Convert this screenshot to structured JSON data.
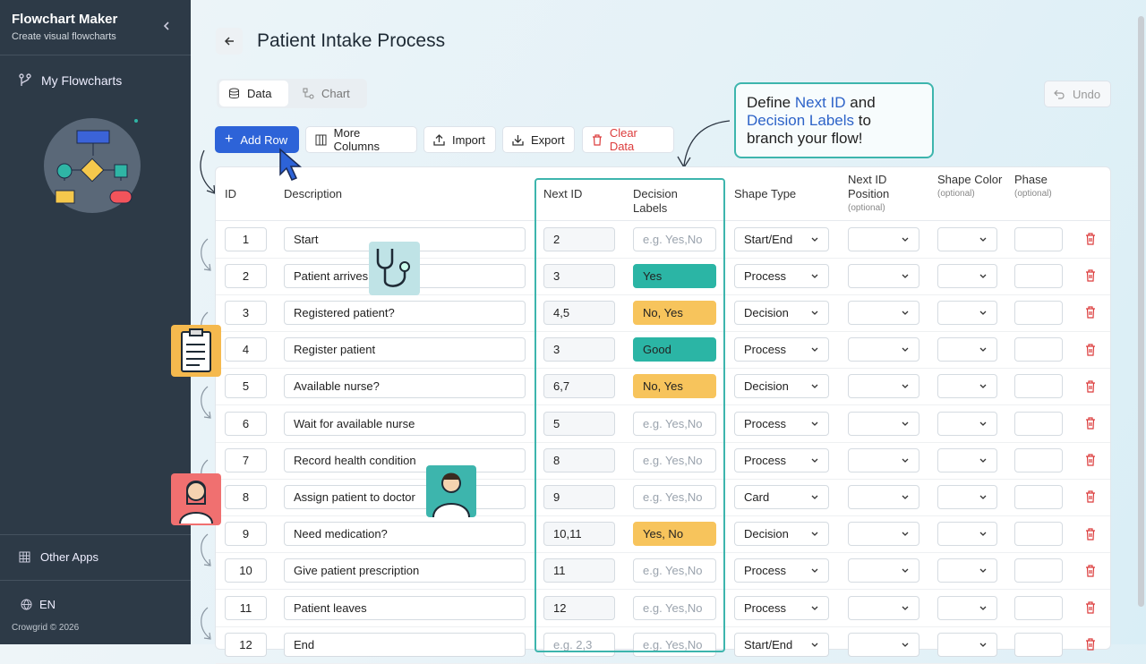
{
  "sidebar": {
    "app_title": "Flowchart Maker",
    "app_subtitle": "Create visual flowcharts",
    "nav_item": "My Flowcharts",
    "other_apps": "Other Apps",
    "language": "EN",
    "footer": "Crowgrid © 2026"
  },
  "header": {
    "title": "Patient Intake Process"
  },
  "tabs": [
    "Data",
    "Chart"
  ],
  "toolbar": [
    "Add Row",
    "More Columns",
    "Import",
    "Export",
    "Clear Data"
  ],
  "undo": "Undo",
  "callout": {
    "parts": [
      "Define",
      "Next ID",
      "and",
      "Decision Labels",
      "to branch your flow!"
    ]
  },
  "table": {
    "columns": [
      {
        "label": "ID"
      },
      {
        "label": "Description"
      },
      {
        "label": "Next ID"
      },
      {
        "label": "Decision Labels"
      },
      {
        "label": "Shape Type"
      },
      {
        "label": "Next ID Position",
        "note": "(optional)"
      },
      {
        "label": "Shape Color",
        "note": "(optional)"
      },
      {
        "label": "Phase",
        "note": "(optional)"
      }
    ],
    "decision_placeholder": "e.g. Yes,No",
    "next_placeholder": "e.g. 2,3",
    "rows": [
      {
        "id": "1",
        "description": "Start",
        "next_id": "2",
        "decision_labels": null,
        "shape_type": "Start/End"
      },
      {
        "id": "2",
        "description": "Patient arrives",
        "next_id": "3",
        "decision_labels": "Yes",
        "decision_tone": "teal",
        "shape_type": "Process"
      },
      {
        "id": "3",
        "description": "Registered patient?",
        "next_id": "4,5",
        "decision_labels": "No, Yes",
        "decision_tone": "orange",
        "shape_type": "Decision"
      },
      {
        "id": "4",
        "description": "Register patient",
        "next_id": "3",
        "decision_labels": "Good",
        "decision_tone": "teal",
        "shape_type": "Process"
      },
      {
        "id": "5",
        "description": "Available nurse?",
        "next_id": "6,7",
        "decision_labels": "No, Yes",
        "decision_tone": "orange",
        "shape_type": "Decision"
      },
      {
        "id": "6",
        "description": "Wait for available nurse",
        "next_id": "5",
        "decision_labels": null,
        "shape_type": "Process"
      },
      {
        "id": "7",
        "description": "Record health condition",
        "next_id": "8",
        "decision_labels": null,
        "shape_type": "Process"
      },
      {
        "id": "8",
        "description": "Assign patient to doctor",
        "next_id": "9",
        "decision_labels": null,
        "shape_type": "Card"
      },
      {
        "id": "9",
        "description": "Need medication?",
        "next_id": "10,11",
        "decision_labels": "Yes, No",
        "decision_tone": "orange",
        "shape_type": "Decision"
      },
      {
        "id": "10",
        "description": "Give patient prescription",
        "next_id": "11",
        "decision_labels": null,
        "shape_type": "Process"
      },
      {
        "id": "11",
        "description": "Patient leaves",
        "next_id": "12",
        "decision_labels": null,
        "shape_type": "Process"
      },
      {
        "id": "12",
        "description": "End",
        "next_id": null,
        "decision_labels": null,
        "shape_type": "Start/End"
      }
    ]
  }
}
